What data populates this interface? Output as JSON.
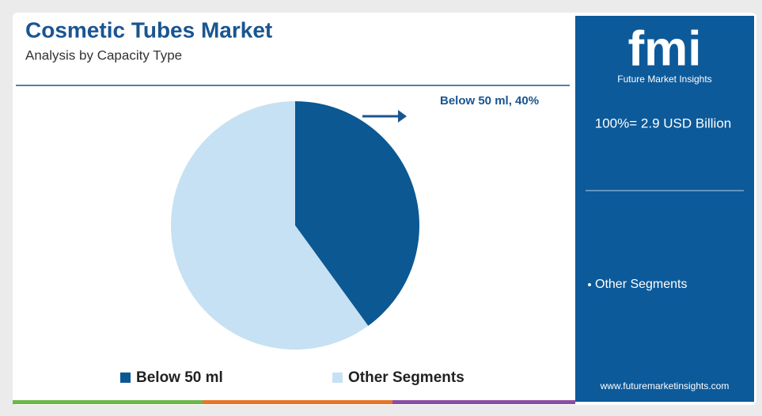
{
  "chart_data": {
    "type": "pie",
    "title": "Cosmetic Tubes Market",
    "subtitle": "Analysis by Capacity Type",
    "categories": [
      "Below 50 ml",
      "Other Segments"
    ],
    "values": [
      40,
      60
    ],
    "value_labels": [
      "Below 50 ml, 40%",
      null
    ],
    "colors": [
      "#0b5893",
      "#c6e1f3"
    ],
    "legend": "bottom"
  },
  "panel": {
    "logo": "fmi",
    "brand": "Future Market Insights",
    "total": "100%= 2.9 USD Billion",
    "segment": "Other Segments",
    "url": "www.futuremarketinsights.com"
  }
}
